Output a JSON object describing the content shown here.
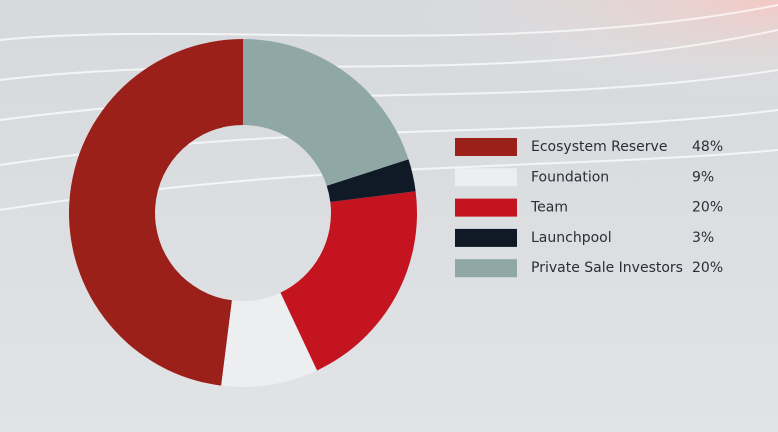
{
  "chart_data": {
    "type": "donut",
    "categories": [
      "Ecosystem Reserve",
      "Foundation",
      "Team",
      "Launchpool",
      "Private Sale Investors"
    ],
    "values": [
      48,
      9,
      20,
      3,
      20
    ],
    "value_labels": [
      "48%",
      "9%",
      "20%",
      "3%",
      "20%"
    ],
    "colors": [
      "#9b2019",
      "#eceef0",
      "#c4141f",
      "#0f1a26",
      "#8fa8a5"
    ],
    "legend": "right"
  }
}
